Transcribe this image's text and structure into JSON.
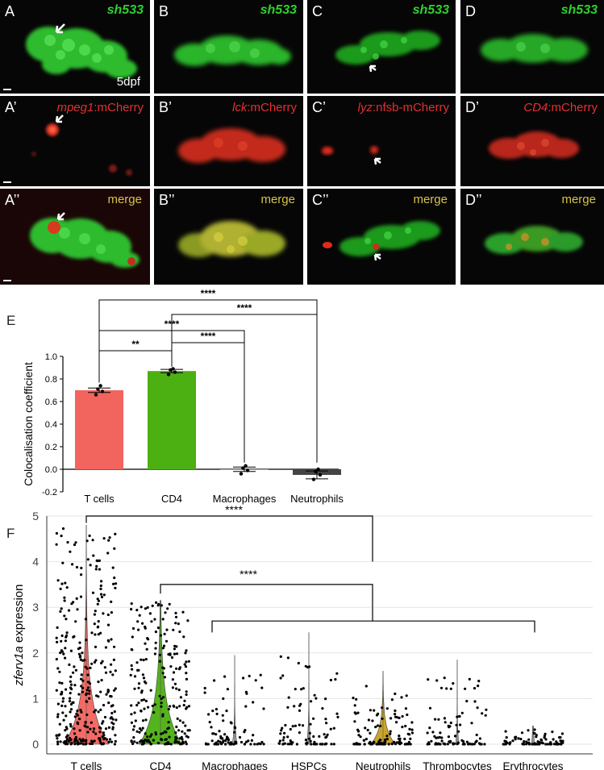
{
  "panels": {
    "A": {
      "label": "A",
      "gene": "sh533",
      "age": "5dpf"
    },
    "B": {
      "label": "B",
      "gene": "sh533"
    },
    "C": {
      "label": "C",
      "gene": "sh533"
    },
    "D": {
      "label": "D",
      "gene": "sh533"
    },
    "A2": {
      "label": "A’",
      "reporter_gene": "mpeg1",
      "reporter_suffix": ":mCherry"
    },
    "B2": {
      "label": "B’",
      "reporter_gene": "lck",
      "reporter_suffix": ":mCherry"
    },
    "C2": {
      "label": "C’",
      "reporter_gene": "lyz",
      "reporter_suffix": ":nfsb-mCherry"
    },
    "D2": {
      "label": "D’",
      "reporter_gene": "CD4",
      "reporter_suffix": ":mCherry"
    },
    "A3": {
      "label": "A’’",
      "merge": "merge"
    },
    "B3": {
      "label": "B’’",
      "merge": "merge"
    },
    "C3": {
      "label": "C’’",
      "merge": "merge"
    },
    "D3": {
      "label": "D’’",
      "merge": "merge"
    }
  },
  "panel_E": {
    "letter": "E",
    "chart_data": {
      "type": "bar",
      "categories": [
        "T cells",
        "CD4",
        "Macrophages",
        "Neutrophils"
      ],
      "values": [
        0.7,
        0.87,
        0.0,
        -0.05
      ],
      "error": [
        0.02,
        0.015,
        0.02,
        0.035
      ],
      "points": [
        [
          0.66,
          0.69,
          0.71,
          0.74
        ],
        [
          0.84,
          0.86,
          0.88,
          0.89
        ],
        [
          -0.04,
          -0.01,
          0.01,
          0.03
        ],
        [
          -0.09,
          -0.05,
          -0.02,
          0.0
        ]
      ],
      "colors": [
        "#f2645e",
        "#4caf12",
        "#a0a0a0",
        "#444444"
      ],
      "ylabel": "Colocalisation coefficient",
      "yticks": [
        "-0.2",
        "0.0",
        "0.2",
        "0.4",
        "0.6",
        "0.8",
        "1.0"
      ],
      "ylim": [
        -0.2,
        1.0
      ],
      "significance": [
        {
          "from": "T cells",
          "to": "CD4",
          "label": "**"
        },
        {
          "from": "CD4",
          "to": "Macrophages",
          "label": "****"
        },
        {
          "from": "T cells",
          "to": "Macrophages",
          "label": "****"
        },
        {
          "from": "CD4",
          "to": "Neutrophils",
          "label": "****"
        },
        {
          "from": "T cells",
          "to": "Neutrophils",
          "label": "****"
        }
      ]
    }
  },
  "panel_F": {
    "letter": "F",
    "chart_data": {
      "type": "violin",
      "categories": [
        "T cells",
        "CD4",
        "Macrophages",
        "HSPCs",
        "Neutrophils",
        "Thrombocytes",
        "Erythrocytes"
      ],
      "colors": [
        "#f2645e",
        "#4caf12",
        "#aaaaaa",
        "#aaaaaa",
        "#c8a020",
        "#aaaaaa",
        "#aaaaaa"
      ],
      "max": [
        4.8,
        3.15,
        1.95,
        2.45,
        1.6,
        1.85,
        0.4
      ],
      "ylabel_gene": "zferv1a",
      "ylabel_suffix": " expression",
      "yticks": [
        "0",
        "1",
        "2",
        "3",
        "4",
        "5"
      ],
      "ylim": [
        0,
        5
      ],
      "significance": [
        {
          "label": "****"
        },
        {
          "label": "****"
        }
      ]
    }
  }
}
